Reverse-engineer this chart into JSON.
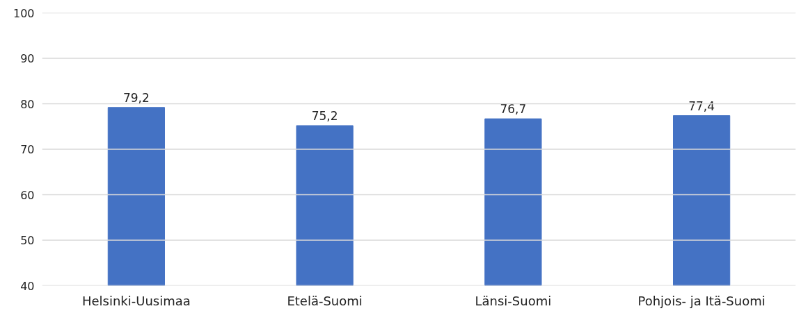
{
  "chart_data": {
    "type": "bar",
    "categories": [
      "Helsinki-Uusimaa",
      "Etelä-Suomi",
      "Länsi-Suomi",
      "Pohjois- ja Itä-Suomi"
    ],
    "values": [
      79.2,
      75.2,
      76.7,
      77.4
    ],
    "value_labels": [
      "79,2",
      "75,2",
      "76,7",
      "77,4"
    ],
    "color": "#4472c4",
    "ylim": [
      40,
      100
    ],
    "yticks": [
      40,
      50,
      60,
      70,
      80,
      90,
      100
    ],
    "grid": "y"
  }
}
